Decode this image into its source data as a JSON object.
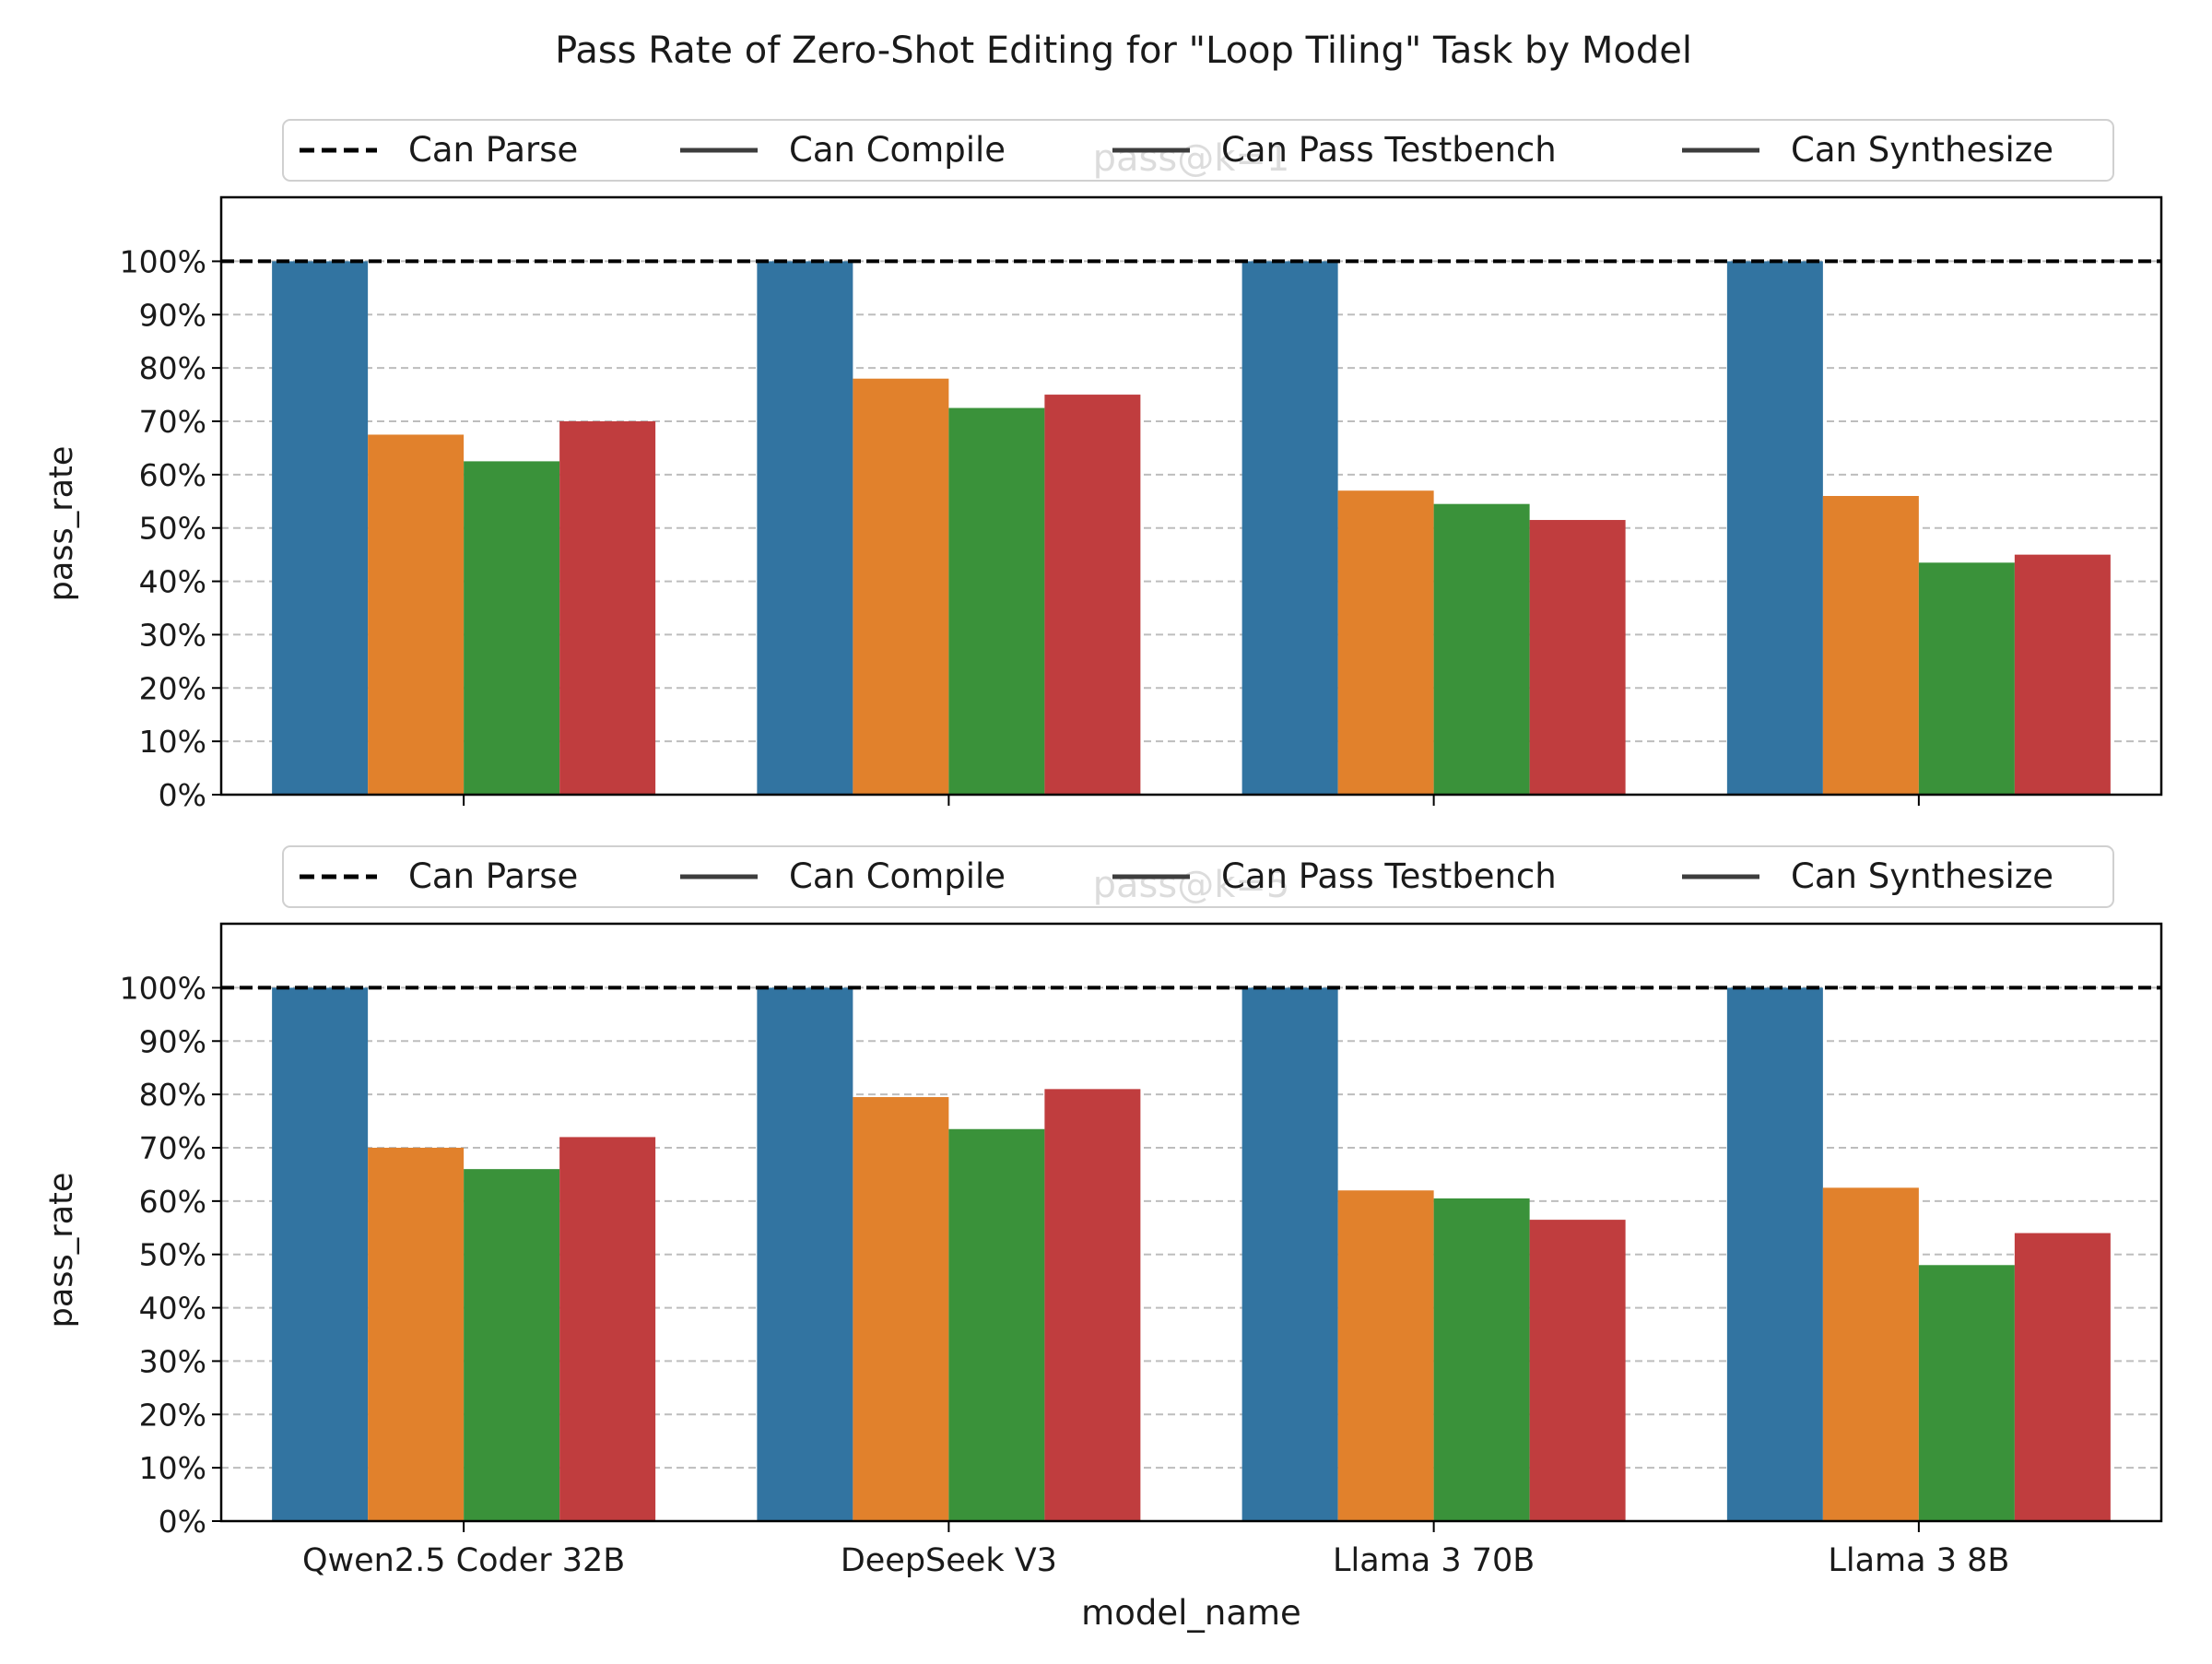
{
  "figure": {
    "title": "Pass Rate of Zero-Shot Editing for \"Loop Tiling\" Task by Model"
  },
  "colors": {
    "blue": "#3274a1",
    "orange": "#e1812c",
    "green": "#3a923a",
    "red": "#c03d3e",
    "reference_line": "#000000",
    "grid": "#bdbdbd"
  },
  "chart_data": [
    {
      "type": "bar",
      "title": "pass@k=1",
      "xlabel": "",
      "ylabel": "pass_rate",
      "ylim": [
        0,
        112
      ],
      "yticks": [
        0,
        10,
        20,
        30,
        40,
        50,
        60,
        70,
        80,
        90,
        100
      ],
      "ytick_labels": [
        "0%",
        "10%",
        "20%",
        "30%",
        "40%",
        "50%",
        "60%",
        "70%",
        "80%",
        "90%",
        "100%"
      ],
      "categories": [
        "Qwen2.5 Coder 32B",
        "DeepSeek V3",
        "Llama 3 70B",
        "Llama 3 8B"
      ],
      "show_xtick_labels": false,
      "grid": "y dashed",
      "legend": {
        "placement": "upper center, 4 columns",
        "entries": [
          {
            "label": "Can Parse",
            "style": "dashed"
          },
          {
            "label": "Can Compile",
            "style": "solid"
          },
          {
            "label": "Can Pass Testbench",
            "style": "solid"
          },
          {
            "label": "Can Synthesize",
            "style": "solid"
          }
        ]
      },
      "reference_line": {
        "y": 100,
        "style": "dashed",
        "label": "Can Parse"
      },
      "series": [
        {
          "color": "#3274a1",
          "values": [
            100,
            100,
            100,
            100
          ]
        },
        {
          "color": "#e1812c",
          "values": [
            67.5,
            78,
            57,
            56
          ]
        },
        {
          "color": "#3a923a",
          "values": [
            62.5,
            72.5,
            54.5,
            43.5
          ]
        },
        {
          "color": "#c03d3e",
          "values": [
            70,
            75,
            51.5,
            45
          ]
        }
      ]
    },
    {
      "type": "bar",
      "title": "pass@k=5",
      "xlabel": "model_name",
      "ylabel": "pass_rate",
      "ylim": [
        0,
        112
      ],
      "yticks": [
        0,
        10,
        20,
        30,
        40,
        50,
        60,
        70,
        80,
        90,
        100
      ],
      "ytick_labels": [
        "0%",
        "10%",
        "20%",
        "30%",
        "40%",
        "50%",
        "60%",
        "70%",
        "80%",
        "90%",
        "100%"
      ],
      "categories": [
        "Qwen2.5 Coder 32B",
        "DeepSeek V3",
        "Llama 3 70B",
        "Llama 3 8B"
      ],
      "show_xtick_labels": true,
      "grid": "y dashed",
      "legend": {
        "placement": "upper center, 4 columns",
        "entries": [
          {
            "label": "Can Parse",
            "style": "dashed"
          },
          {
            "label": "Can Compile",
            "style": "solid"
          },
          {
            "label": "Can Pass Testbench",
            "style": "solid"
          },
          {
            "label": "Can Synthesize",
            "style": "solid"
          }
        ]
      },
      "reference_line": {
        "y": 100,
        "style": "dashed",
        "label": "Can Parse"
      },
      "series": [
        {
          "color": "#3274a1",
          "values": [
            100,
            100,
            100,
            100
          ]
        },
        {
          "color": "#e1812c",
          "values": [
            70,
            79.5,
            62,
            62.5
          ]
        },
        {
          "color": "#3a923a",
          "values": [
            66,
            73.5,
            60.5,
            48
          ]
        },
        {
          "color": "#c03d3e",
          "values": [
            72,
            81,
            56.5,
            54
          ]
        }
      ]
    }
  ]
}
